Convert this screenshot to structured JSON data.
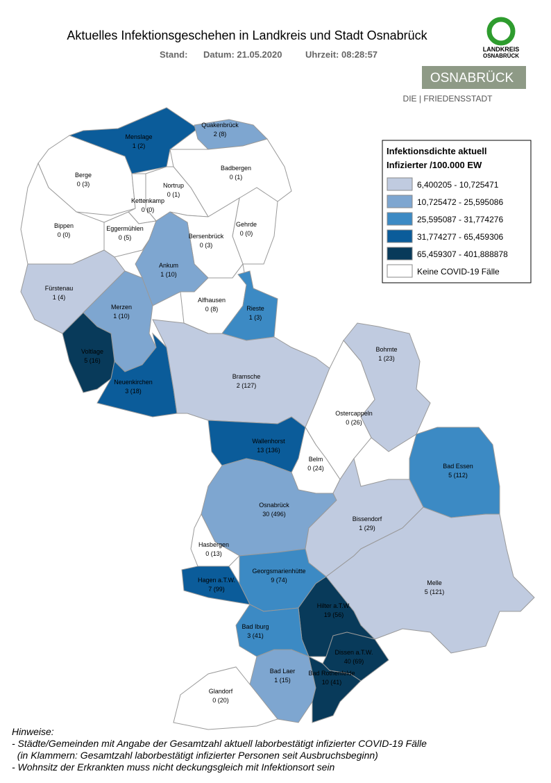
{
  "header": {
    "title": "Aktuelles Infektionsgeschehen in Landkreis und Stadt Osnabrück",
    "stand": "Stand:",
    "datum": "Datum: 21.05.2020",
    "uhrzeit": "Uhrzeit: 08:28:57"
  },
  "logo": {
    "line1": "LANDKREIS",
    "line2": "OSNABRÜCK",
    "brand": "OSNABRÜCK",
    "tagline": "DIE | FRIEDENSSTADT"
  },
  "legend": {
    "title1": "Infektionsdichte aktuell",
    "title2": "Infizierter /100.000 EW",
    "entries": [
      {
        "label": "6,400205 - 10,725471",
        "color": "#c0cbe0"
      },
      {
        "label": "10,725472 - 25,595086",
        "color": "#7ea6d0"
      },
      {
        "label": "25,595087 - 31,774276",
        "color": "#3c8ac4"
      },
      {
        "label": "31,774277 - 65,459306",
        "color": "#0b5c9a"
      },
      {
        "label": "65,459307 - 401,888878",
        "color": "#083a5a"
      },
      {
        "label": "Keine COVID-19 Fälle",
        "color": "#ffffff"
      }
    ]
  },
  "regions": [
    {
      "name": "Menslage",
      "cases": "1 (2)",
      "color": "#0b5c9a"
    },
    {
      "name": "Quakenbrück",
      "cases": "2 (8)",
      "color": "#7ea6d0"
    },
    {
      "name": "Badbergen",
      "cases": "0 (1)",
      "color": "#ffffff"
    },
    {
      "name": "Berge",
      "cases": "0 (3)",
      "color": "#ffffff"
    },
    {
      "name": "Nortrup",
      "cases": "0 (1)",
      "color": "#ffffff"
    },
    {
      "name": "Kettenkamp",
      "cases": "0 (0)",
      "color": "#ffffff"
    },
    {
      "name": "Bippen",
      "cases": "0 (0)",
      "color": "#ffffff"
    },
    {
      "name": "Eggermühlen",
      "cases": "0 (5)",
      "color": "#ffffff"
    },
    {
      "name": "Gehrde",
      "cases": "0 (0)",
      "color": "#ffffff"
    },
    {
      "name": "Bersenbrück",
      "cases": "0 (3)",
      "color": "#ffffff"
    },
    {
      "name": "Ankum",
      "cases": "1 (10)",
      "color": "#7ea6d0"
    },
    {
      "name": "Fürstenau",
      "cases": "1 (4)",
      "color": "#c0cbe0"
    },
    {
      "name": "Alfhausen",
      "cases": "0 (8)",
      "color": "#ffffff"
    },
    {
      "name": "Rieste",
      "cases": "1 (3)",
      "color": "#3c8ac4"
    },
    {
      "name": "Merzen",
      "cases": "1 (10)",
      "color": "#7ea6d0"
    },
    {
      "name": "Voltlage",
      "cases": "5 (16)",
      "color": "#083a5a"
    },
    {
      "name": "Neuenkirchen",
      "cases": "3 (18)",
      "color": "#0b5c9a"
    },
    {
      "name": "Bramsche",
      "cases": "2 (127)",
      "color": "#c0cbe0"
    },
    {
      "name": "Bohmte",
      "cases": "1 (23)",
      "color": "#c0cbe0"
    },
    {
      "name": "Ostercappeln",
      "cases": "0 (26)",
      "color": "#ffffff"
    },
    {
      "name": "Wallenhorst",
      "cases": "13 (136)",
      "color": "#0b5c9a"
    },
    {
      "name": "Belm",
      "cases": "0 (24)",
      "color": "#ffffff"
    },
    {
      "name": "Bad Essen",
      "cases": "5 (112)",
      "color": "#3c8ac4"
    },
    {
      "name": "Osnabrück",
      "cases": "30 (496)",
      "color": "#7ea6d0"
    },
    {
      "name": "Bissendorf",
      "cases": "1 (29)",
      "color": "#c0cbe0"
    },
    {
      "name": "Hasbergen",
      "cases": "0 (13)",
      "color": "#ffffff"
    },
    {
      "name": "Georgsmarienhütte",
      "cases": "9 (74)",
      "color": "#3c8ac4"
    },
    {
      "name": "Hagen a.T.W.",
      "cases": "7 (99)",
      "color": "#0b5c9a"
    },
    {
      "name": "Melle",
      "cases": "5 (121)",
      "color": "#c0cbe0"
    },
    {
      "name": "Hilter a.T.W.",
      "cases": "19 (56)",
      "color": "#083a5a"
    },
    {
      "name": "Bad Iburg",
      "cases": "3 (41)",
      "color": "#3c8ac4"
    },
    {
      "name": "Dissen a.T.W.",
      "cases": "40 (69)",
      "color": "#083a5a"
    },
    {
      "name": "Bad Laer",
      "cases": "1 (15)",
      "color": "#7ea6d0"
    },
    {
      "name": "Bad Rothenfelde",
      "cases": "10 (41)",
      "color": "#083a5a"
    },
    {
      "name": "Glandorf",
      "cases": "0 (20)",
      "color": "#ffffff"
    }
  ],
  "notes": [
    "Hinweise:",
    "- Städte/Gemeinden mit Angabe der Gesamtzahl aktuell laborbestätigt infizierter COVID-19 Fälle",
    "  (in Klammern: Gesamtzahl laborbestätigt infizierter Personen seit Ausbruchsbeginn)",
    "- Wohnsitz der Erkrankten muss nicht deckungsgleich mit Infektionsort sein"
  ]
}
